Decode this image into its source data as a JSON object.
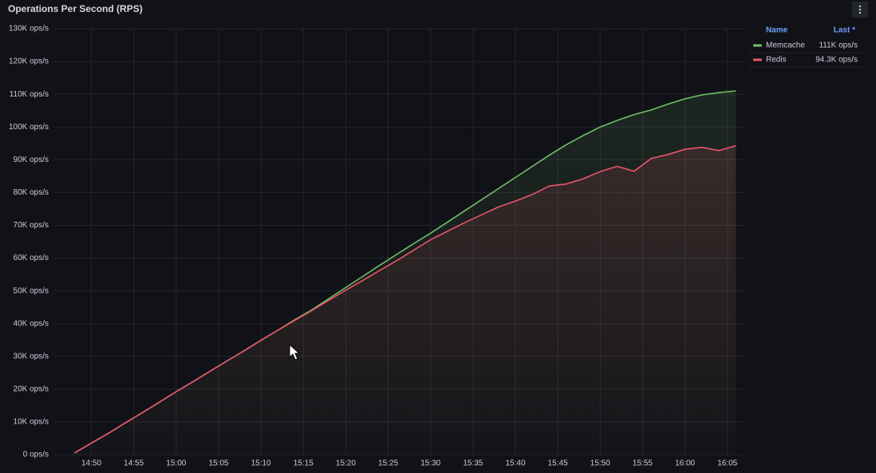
{
  "chart_data": {
    "type": "line",
    "title": "Operations Per Second (RPS)",
    "x": [
      "14:48",
      "14:50",
      "14:52",
      "14:54",
      "14:56",
      "14:58",
      "15:00",
      "15:02",
      "15:04",
      "15:06",
      "15:08",
      "15:10",
      "15:12",
      "15:14",
      "15:16",
      "15:18",
      "15:20",
      "15:22",
      "15:24",
      "15:26",
      "15:28",
      "15:30",
      "15:32",
      "15:34",
      "15:36",
      "15:38",
      "15:40",
      "15:42",
      "15:44",
      "15:46",
      "15:48",
      "15:50",
      "15:52",
      "15:54",
      "15:56",
      "15:58",
      "16:00",
      "16:02",
      "16:04",
      "16:06"
    ],
    "series": [
      {
        "name": "Memcache",
        "color": "#73bf69",
        "last_label": "111K ops/s",
        "values": [
          500,
          3500,
          6500,
          9700,
          12800,
          16000,
          19200,
          22300,
          25500,
          28600,
          31700,
          34900,
          38000,
          41200,
          44200,
          47600,
          51000,
          54400,
          57800,
          61100,
          64400,
          67600,
          71000,
          74400,
          77800,
          81200,
          84600,
          88000,
          91400,
          94600,
          97400,
          100000,
          102000,
          103800,
          105200,
          107000,
          108600,
          109800,
          110500,
          111000
        ]
      },
      {
        "name": "Redis",
        "color": "#e8556a",
        "last_label": "94.3K ops/s",
        "values": [
          500,
          3500,
          6500,
          9700,
          12800,
          16000,
          19200,
          22300,
          25500,
          28600,
          31700,
          34900,
          38000,
          41000,
          44000,
          47100,
          50200,
          53200,
          56200,
          59200,
          62400,
          65600,
          68200,
          70800,
          73200,
          75600,
          77400,
          79400,
          82000,
          82600,
          84200,
          86400,
          88000,
          86500,
          90400,
          91600,
          93200,
          93800,
          92800,
          94300
        ]
      }
    ],
    "legend": {
      "name_header": "Name",
      "value_header": "Last *"
    },
    "xlim": [
      "14:46",
      "16:07"
    ],
    "xticks": [
      "14:50",
      "14:55",
      "15:00",
      "15:05",
      "15:10",
      "15:15",
      "15:20",
      "15:25",
      "15:30",
      "15:35",
      "15:40",
      "15:45",
      "15:50",
      "15:55",
      "16:00",
      "16:05"
    ],
    "ylim": [
      0,
      130000
    ],
    "yticks": [
      {
        "value": 0,
        "label": "0 ops/s"
      },
      {
        "value": 10000,
        "label": "10K ops/s"
      },
      {
        "value": 20000,
        "label": "20K ops/s"
      },
      {
        "value": 30000,
        "label": "30K ops/s"
      },
      {
        "value": 40000,
        "label": "40K ops/s"
      },
      {
        "value": 50000,
        "label": "50K ops/s"
      },
      {
        "value": 60000,
        "label": "60K ops/s"
      },
      {
        "value": 70000,
        "label": "70K ops/s"
      },
      {
        "value": 80000,
        "label": "80K ops/s"
      },
      {
        "value": 90000,
        "label": "90K ops/s"
      },
      {
        "value": 100000,
        "label": "100K ops/s"
      },
      {
        "value": 110000,
        "label": "110K ops/s"
      },
      {
        "value": 120000,
        "label": "120K ops/s"
      },
      {
        "value": 130000,
        "label": "130K ops/s"
      }
    ],
    "grid": true
  }
}
